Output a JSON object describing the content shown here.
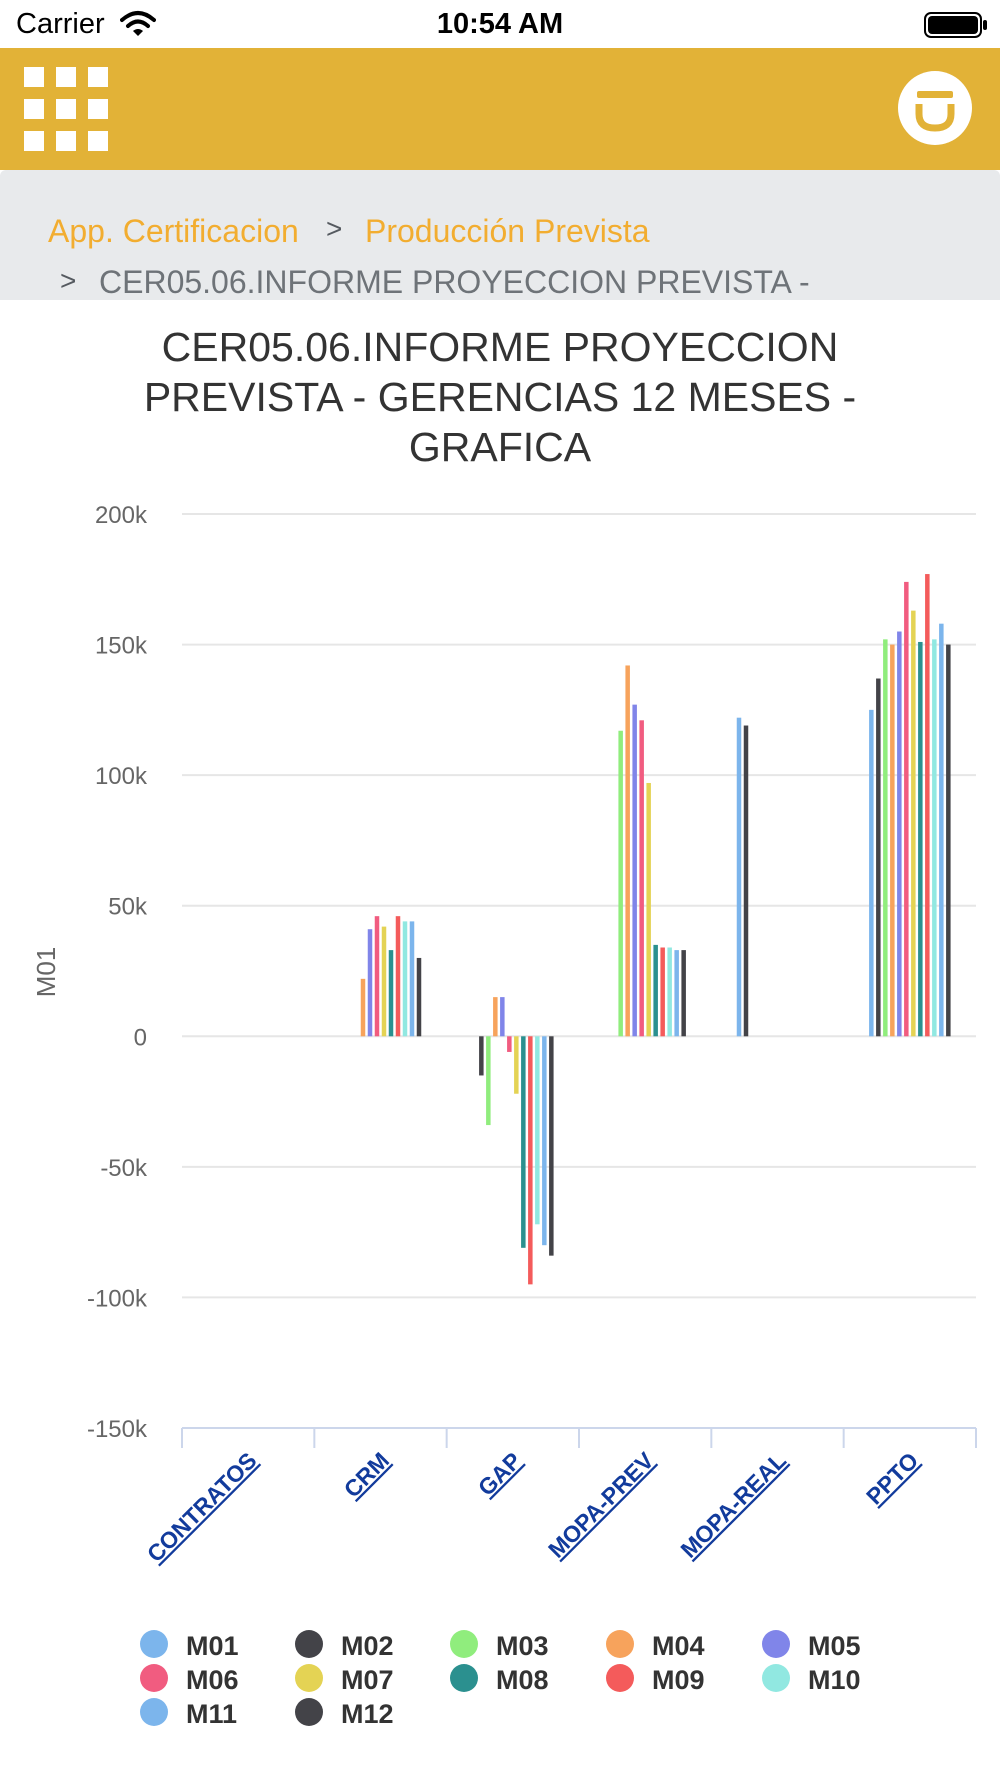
{
  "status_bar": {
    "carrier": "Carrier",
    "time": "10:54 AM"
  },
  "breadcrumb": {
    "items": [
      "App. Certificacion",
      "Producción Prevista"
    ],
    "separator": ">",
    "current": "CER05.06.INFORME PROYECCION PREVISTA -"
  },
  "colors": {
    "header": "#e2b237",
    "breadcrumb_link": "#f2ad30",
    "panel": "#e8eaec"
  },
  "chart_data": {
    "type": "bar",
    "title": "CER05.06.INFORME PROYECCION PREVISTA - GERENCIAS 12 MESES - GRAFICA",
    "ylabel": "M01",
    "xlabel": "",
    "categories": [
      "CONTRATOS",
      "CRM",
      "GAP",
      "MOPA-PREV",
      "MOPA-REAL",
      "PPTO"
    ],
    "ylim": [
      -150000,
      200000
    ],
    "y_ticks": [
      {
        "value": 200000,
        "label": "200k"
      },
      {
        "value": 150000,
        "label": "150k"
      },
      {
        "value": 100000,
        "label": "100k"
      },
      {
        "value": 50000,
        "label": "50k"
      },
      {
        "value": 0,
        "label": "0"
      },
      {
        "value": -50000,
        "label": "-50k"
      },
      {
        "value": -100000,
        "label": "-100k"
      },
      {
        "value": -150000,
        "label": "-150k"
      }
    ],
    "grid": true,
    "legend_position": "bottom",
    "series": [
      {
        "name": "M01",
        "color": "#7cb5ec",
        "values": [
          0,
          0,
          0,
          0,
          122000,
          125000
        ]
      },
      {
        "name": "M02",
        "color": "#434348",
        "values": [
          0,
          0,
          -15000,
          0,
          119000,
          137000
        ]
      },
      {
        "name": "M03",
        "color": "#90ed7d",
        "values": [
          0,
          0,
          -34000,
          117000,
          0,
          152000
        ]
      },
      {
        "name": "M04",
        "color": "#f7a35c",
        "values": [
          0,
          22000,
          15000,
          142000,
          0,
          150000
        ]
      },
      {
        "name": "M05",
        "color": "#8085e9",
        "values": [
          0,
          41000,
          15000,
          127000,
          0,
          155000
        ]
      },
      {
        "name": "M06",
        "color": "#f15c80",
        "values": [
          0,
          46000,
          -6000,
          121000,
          0,
          174000
        ]
      },
      {
        "name": "M07",
        "color": "#e4d354",
        "values": [
          0,
          42000,
          -22000,
          97000,
          0,
          163000
        ]
      },
      {
        "name": "M08",
        "color": "#2b908f",
        "values": [
          0,
          33000,
          -81000,
          35000,
          0,
          151000
        ]
      },
      {
        "name": "M09",
        "color": "#f45b5b",
        "values": [
          0,
          46000,
          -95000,
          34000,
          0,
          177000
        ]
      },
      {
        "name": "M10",
        "color": "#91e8e1",
        "values": [
          0,
          44000,
          -72000,
          34000,
          0,
          152000
        ]
      },
      {
        "name": "M11",
        "color": "#7cb5ec",
        "values": [
          0,
          44000,
          -80000,
          33000,
          0,
          158000
        ]
      },
      {
        "name": "M12",
        "color": "#434348",
        "values": [
          0,
          30000,
          -84000,
          33000,
          0,
          150000
        ]
      }
    ]
  }
}
